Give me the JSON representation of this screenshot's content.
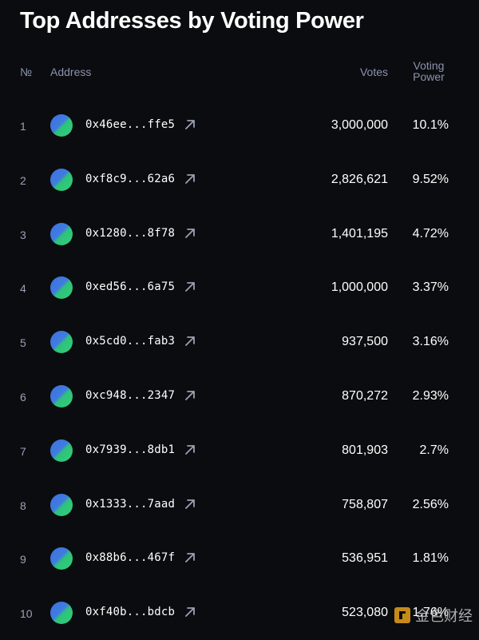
{
  "title": "Top Addresses by Voting Power",
  "columns": {
    "number": "№",
    "address": "Address",
    "votes": "Votes",
    "voting_power_line1": "Voting",
    "voting_power_line2": "Power"
  },
  "rows": [
    {
      "rank": "1",
      "address": "0x46ee...ffe5",
      "votes": "3,000,000",
      "power": "10.1%"
    },
    {
      "rank": "2",
      "address": "0xf8c9...62a6",
      "votes": "2,826,621",
      "power": "9.52%"
    },
    {
      "rank": "3",
      "address": "0x1280...8f78",
      "votes": "1,401,195",
      "power": "4.72%"
    },
    {
      "rank": "4",
      "address": "0xed56...6a75",
      "votes": "1,000,000",
      "power": "3.37%"
    },
    {
      "rank": "5",
      "address": "0x5cd0...fab3",
      "votes": "937,500",
      "power": "3.16%"
    },
    {
      "rank": "6",
      "address": "0xc948...2347",
      "votes": "870,272",
      "power": "2.93%"
    },
    {
      "rank": "7",
      "address": "0x7939...8db1",
      "votes": "801,903",
      "power": "2.7%"
    },
    {
      "rank": "8",
      "address": "0x1333...7aad",
      "votes": "758,807",
      "power": "2.56%"
    },
    {
      "rank": "9",
      "address": "0x88b6...467f",
      "votes": "536,951",
      "power": "1.81%"
    },
    {
      "rank": "10",
      "address": "0xf40b...bdcb",
      "votes": "523,080",
      "power": "1.76%"
    }
  ],
  "icons": {
    "avatar": "address-avatar",
    "external_link": "external-link-arrow-icon"
  },
  "colors": {
    "background": "#0b0c0f",
    "header_text": "#8b93ad",
    "avatar_blue": "#3f6fe0",
    "avatar_green": "#2fd07a"
  },
  "watermark": {
    "text": "金色财经"
  }
}
